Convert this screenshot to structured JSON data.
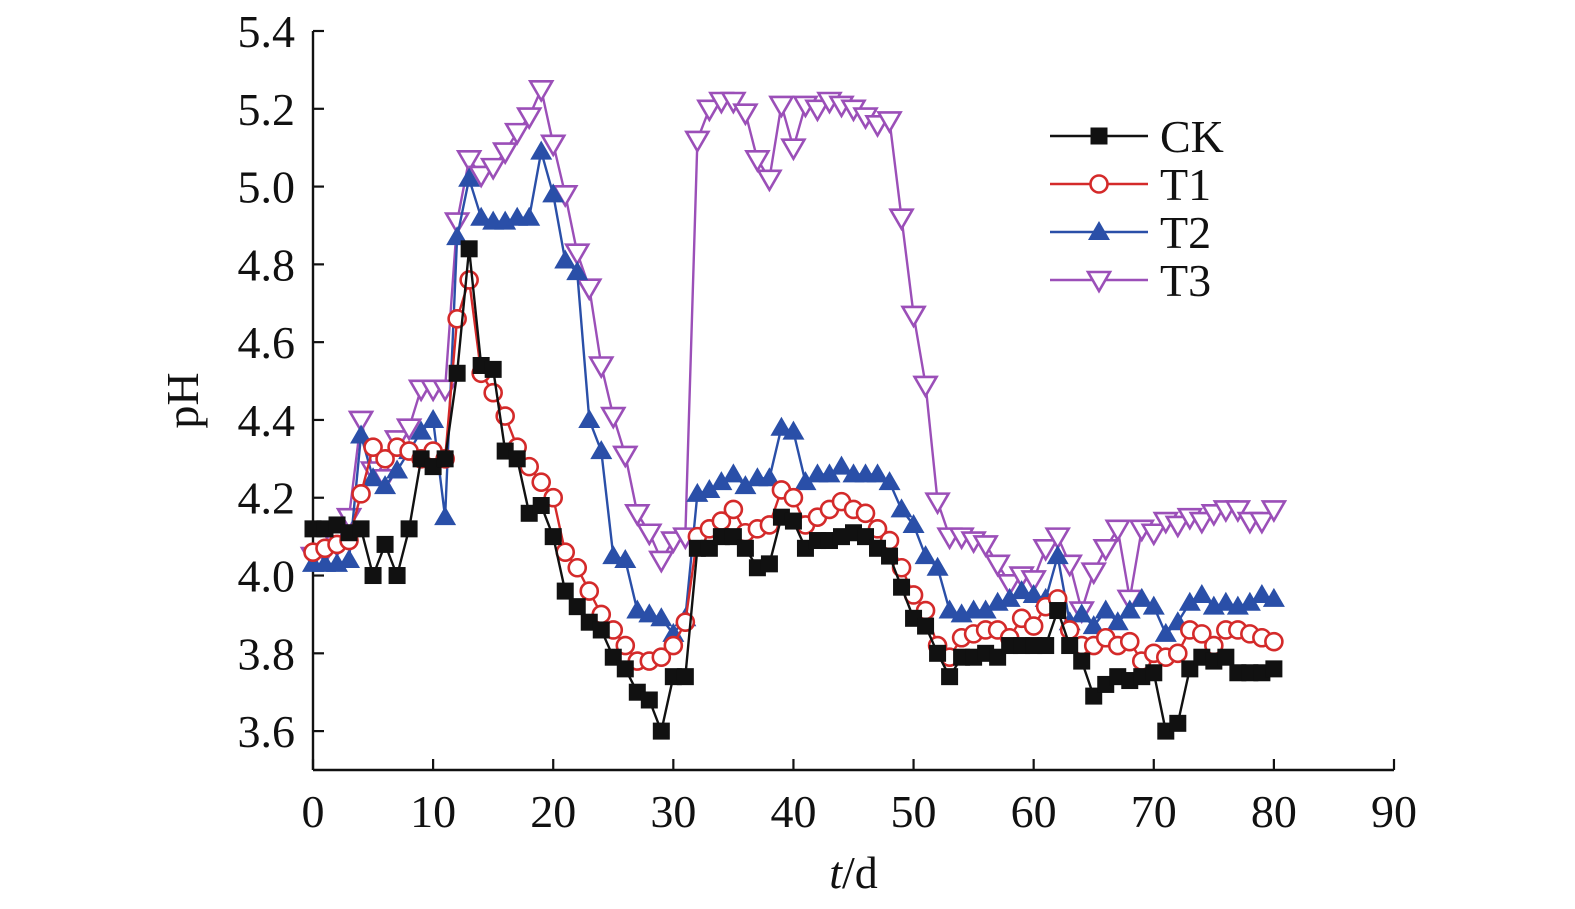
{
  "chart_data": {
    "type": "line",
    "title": "",
    "xlabel": "d",
    "xlabel_italic": "t",
    "xlabel_separator": "/",
    "ylabel": "pH",
    "xlim": [
      0,
      90
    ],
    "ylim": [
      3.5,
      5.4
    ],
    "x_ticks": [
      "0",
      "10",
      "20",
      "30",
      "40",
      "50",
      "60",
      "70",
      "80",
      "90"
    ],
    "y_ticks": [
      "3.6",
      "3.8",
      "4.0",
      "4.2",
      "4.4",
      "4.6",
      "4.8",
      "5.0",
      "5.2",
      "5.4"
    ],
    "grid": false,
    "legend_position": "top-right",
    "series": [
      {
        "name": "CK",
        "color": "#111111",
        "marker": "square-filled",
        "x": [
          0,
          1,
          2,
          3,
          4,
          5,
          6,
          7,
          8,
          9,
          10,
          11,
          12,
          13,
          14,
          15,
          16,
          17,
          18,
          19,
          20,
          21,
          22,
          23,
          24,
          25,
          26,
          27,
          28,
          29,
          30,
          31,
          32,
          33,
          34,
          35,
          36,
          37,
          38,
          39,
          40,
          41,
          42,
          43,
          44,
          45,
          46,
          47,
          48,
          49,
          50,
          51,
          52,
          53,
          54,
          55,
          56,
          57,
          58,
          59,
          60,
          61,
          62,
          63,
          64,
          65,
          66,
          67,
          68,
          69,
          70,
          71,
          72,
          73,
          74,
          75,
          76,
          77,
          78,
          79,
          80
        ],
        "values": [
          4.12,
          4.12,
          4.13,
          4.11,
          4.12,
          4.0,
          4.08,
          4.0,
          4.12,
          4.3,
          4.28,
          4.3,
          4.52,
          4.84,
          4.54,
          4.53,
          4.32,
          4.3,
          4.16,
          4.18,
          4.1,
          3.96,
          3.92,
          3.88,
          3.86,
          3.79,
          3.76,
          3.7,
          3.68,
          3.6,
          3.74,
          3.74,
          4.07,
          4.07,
          4.1,
          4.1,
          4.07,
          4.02,
          4.03,
          4.15,
          4.14,
          4.07,
          4.09,
          4.09,
          4.1,
          4.11,
          4.1,
          4.07,
          4.05,
          3.97,
          3.89,
          3.87,
          3.8,
          3.74,
          3.79,
          3.79,
          3.8,
          3.79,
          3.82,
          3.82,
          3.82,
          3.82,
          3.91,
          3.82,
          3.78,
          3.69,
          3.72,
          3.74,
          3.73,
          3.74,
          3.75,
          3.6,
          3.62,
          3.76,
          3.79,
          3.78,
          3.79,
          3.75,
          3.75,
          3.75,
          3.76
        ]
      },
      {
        "name": "T1",
        "color": "#d42a2a",
        "marker": "circle-open",
        "x": [
          0,
          1,
          2,
          3,
          4,
          5,
          6,
          7,
          8,
          9,
          10,
          11,
          12,
          13,
          14,
          15,
          16,
          17,
          18,
          19,
          20,
          21,
          22,
          23,
          24,
          25,
          26,
          27,
          28,
          29,
          30,
          31,
          32,
          33,
          34,
          35,
          36,
          37,
          38,
          39,
          40,
          41,
          42,
          43,
          44,
          45,
          46,
          47,
          48,
          49,
          50,
          51,
          52,
          53,
          54,
          55,
          56,
          57,
          58,
          59,
          60,
          61,
          62,
          63,
          64,
          65,
          66,
          67,
          68,
          69,
          70,
          71,
          72,
          73,
          74,
          75,
          76,
          77,
          78,
          79,
          80
        ],
        "values": [
          4.06,
          4.07,
          4.08,
          4.09,
          4.21,
          4.33,
          4.3,
          4.33,
          4.32,
          4.3,
          4.32,
          4.3,
          4.66,
          4.76,
          4.52,
          4.47,
          4.41,
          4.33,
          4.28,
          4.24,
          4.2,
          4.06,
          4.02,
          3.96,
          3.9,
          3.86,
          3.82,
          3.78,
          3.78,
          3.79,
          3.82,
          3.88,
          4.1,
          4.12,
          4.14,
          4.17,
          4.11,
          4.12,
          4.13,
          4.22,
          4.2,
          4.13,
          4.15,
          4.17,
          4.19,
          4.17,
          4.16,
          4.12,
          4.09,
          4.02,
          3.95,
          3.91,
          3.82,
          3.79,
          3.84,
          3.85,
          3.86,
          3.86,
          3.84,
          3.89,
          3.87,
          3.92,
          3.94,
          3.86,
          3.82,
          3.82,
          3.84,
          3.82,
          3.83,
          3.78,
          3.8,
          3.79,
          3.8,
          3.86,
          3.85,
          3.82,
          3.86,
          3.86,
          3.85,
          3.84,
          3.83
        ]
      },
      {
        "name": "T2",
        "color": "#2a4fa8",
        "marker": "triangle-up-filled",
        "x": [
          0,
          1,
          2,
          3,
          4,
          5,
          6,
          7,
          8,
          9,
          10,
          11,
          12,
          13,
          14,
          15,
          16,
          17,
          18,
          19,
          20,
          21,
          22,
          23,
          24,
          25,
          26,
          27,
          28,
          29,
          30,
          31,
          32,
          33,
          34,
          35,
          36,
          37,
          38,
          39,
          40,
          41,
          42,
          43,
          44,
          45,
          46,
          47,
          48,
          49,
          50,
          51,
          52,
          53,
          54,
          55,
          56,
          57,
          58,
          59,
          60,
          61,
          62,
          63,
          64,
          65,
          66,
          67,
          68,
          69,
          70,
          71,
          72,
          73,
          74,
          75,
          76,
          77,
          78,
          79,
          80
        ],
        "values": [
          4.03,
          4.03,
          4.03,
          4.04,
          4.36,
          4.25,
          4.23,
          4.27,
          4.32,
          4.37,
          4.4,
          4.15,
          4.87,
          5.02,
          4.92,
          4.91,
          4.91,
          4.92,
          4.92,
          5.09,
          4.98,
          4.81,
          4.78,
          4.4,
          4.32,
          4.05,
          4.04,
          3.91,
          3.9,
          3.89,
          3.85,
          3.89,
          4.21,
          4.22,
          4.24,
          4.26,
          4.23,
          4.25,
          4.25,
          4.38,
          4.37,
          4.24,
          4.26,
          4.26,
          4.28,
          4.26,
          4.26,
          4.26,
          4.24,
          4.17,
          4.13,
          4.05,
          4.02,
          3.91,
          3.9,
          3.91,
          3.91,
          3.93,
          3.94,
          3.96,
          3.95,
          3.94,
          4.05,
          3.88,
          3.9,
          3.87,
          3.91,
          3.88,
          3.91,
          3.94,
          3.92,
          3.85,
          3.88,
          3.93,
          3.95,
          3.92,
          3.93,
          3.92,
          3.93,
          3.95,
          3.94
        ]
      },
      {
        "name": "T3",
        "color": "#9b4fb8",
        "marker": "triangle-down-open",
        "x": [
          0,
          1,
          2,
          3,
          4,
          5,
          6,
          7,
          8,
          9,
          10,
          11,
          12,
          13,
          14,
          15,
          16,
          17,
          18,
          19,
          20,
          21,
          22,
          23,
          24,
          25,
          26,
          27,
          28,
          29,
          30,
          31,
          32,
          33,
          34,
          35,
          36,
          37,
          38,
          39,
          40,
          41,
          42,
          43,
          44,
          45,
          46,
          47,
          48,
          49,
          50,
          51,
          52,
          53,
          54,
          55,
          56,
          57,
          58,
          59,
          60,
          61,
          62,
          63,
          64,
          65,
          66,
          67,
          68,
          69,
          70,
          71,
          72,
          73,
          74,
          75,
          76,
          77,
          78,
          79,
          80
        ],
        "values": [
          4.05,
          4.06,
          4.08,
          4.15,
          4.4,
          4.27,
          4.25,
          4.35,
          4.38,
          4.48,
          4.48,
          4.48,
          4.91,
          5.07,
          5.03,
          5.05,
          5.09,
          5.14,
          5.18,
          5.25,
          5.11,
          4.98,
          4.83,
          4.74,
          4.54,
          4.41,
          4.31,
          4.16,
          4.11,
          4.04,
          4.09,
          4.1,
          5.12,
          5.2,
          5.22,
          5.22,
          5.19,
          5.07,
          5.02,
          5.21,
          5.1,
          5.21,
          5.2,
          5.22,
          5.21,
          5.2,
          5.18,
          5.16,
          5.17,
          4.92,
          4.67,
          4.49,
          4.19,
          4.1,
          4.1,
          4.09,
          4.08,
          4.03,
          3.98,
          4.0,
          3.99,
          4.07,
          4.1,
          4.03,
          3.91,
          4.01,
          4.07,
          4.12,
          3.94,
          4.12,
          4.11,
          4.14,
          4.13,
          4.15,
          4.14,
          4.16,
          4.17,
          4.17,
          4.14,
          4.14,
          4.17
        ]
      }
    ]
  }
}
